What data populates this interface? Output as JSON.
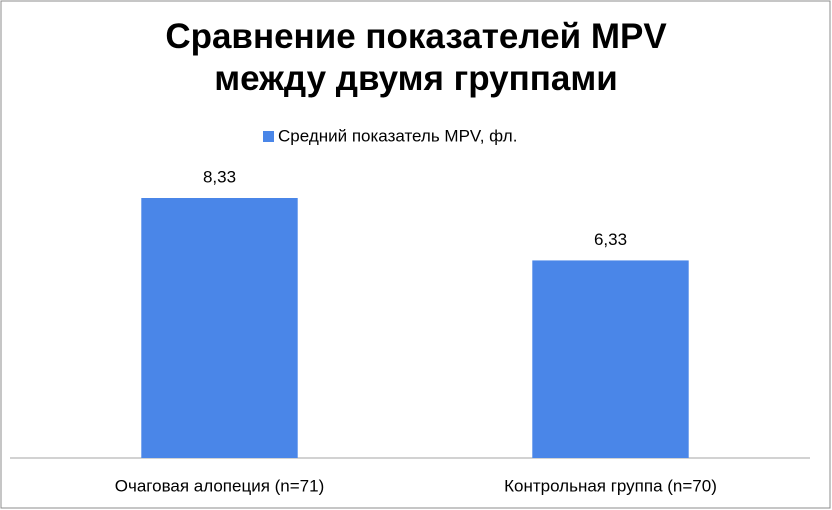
{
  "chart_data": {
    "type": "bar",
    "title": "Сравнение показателей MPV между двумя группами",
    "categories": [
      "Очаговая алопеция (n=71)",
      "Контрольная группа (n=70)"
    ],
    "series": [
      {
        "name": "Средний показатель MPV, фл.",
        "color": "#4a86e8",
        "values": [
          8.33,
          6.33
        ],
        "value_labels": [
          "8,33",
          "6,33"
        ]
      }
    ]
  }
}
